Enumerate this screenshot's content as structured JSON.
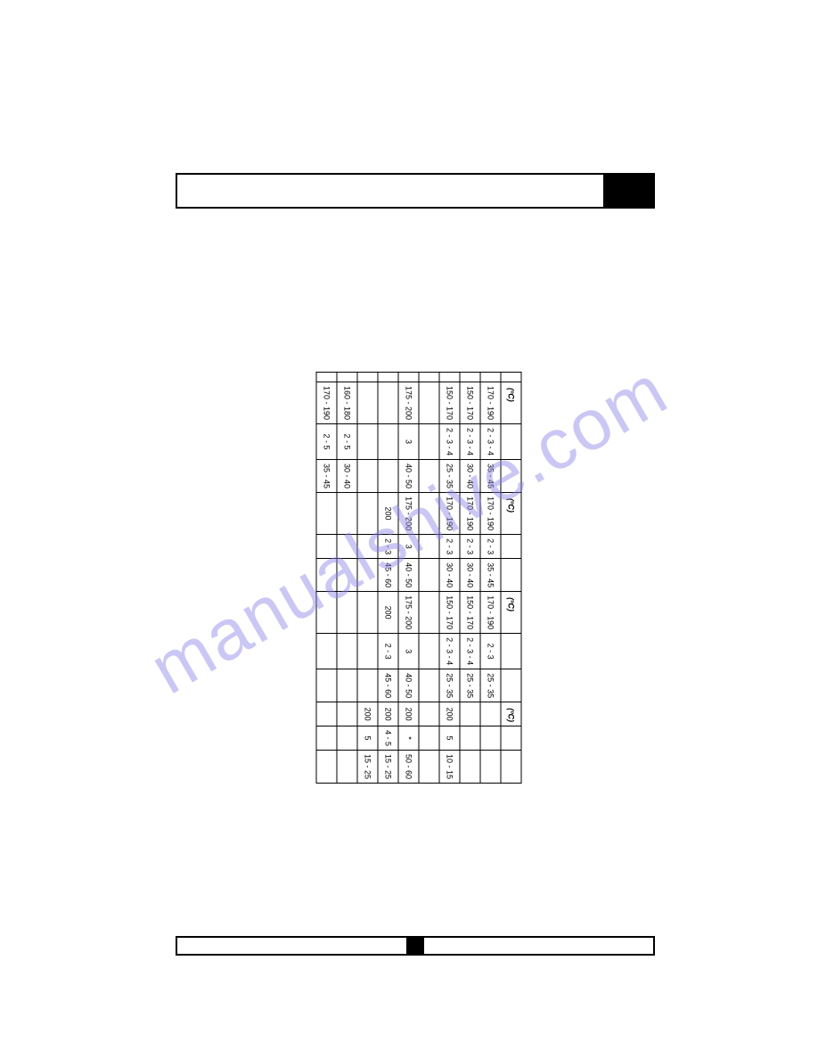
{
  "watermark_text": "manualshive.com",
  "table": {
    "group_headers": [
      {
        "unit": "(ºC)",
        "cols": [
          "",
          "",
          ""
        ]
      },
      {
        "unit": "(ºC)",
        "cols": [
          "",
          "",
          ""
        ]
      },
      {
        "unit": "(ºC)",
        "cols": [
          "",
          "",
          ""
        ]
      },
      {
        "unit": "(ºC)",
        "cols": [
          "",
          "",
          ""
        ]
      }
    ],
    "rows": [
      {
        "g1": [
          "170 - 190",
          "2 - 3 - 4",
          "35 - 45"
        ],
        "g2": [
          "170 - 190",
          "2 - 3",
          "35 - 45"
        ],
        "g3": [
          "170 - 190",
          "2 - 3",
          "25 - 35"
        ],
        "g4": [
          "",
          "",
          ""
        ]
      },
      {
        "g1": [
          "150 - 170",
          "2 - 3 - 4",
          "30 - 40"
        ],
        "g2": [
          "170 - 190",
          "2 - 3",
          "30 - 40"
        ],
        "g3": [
          "150 - 170",
          "2 - 3 - 4",
          "25 - 35"
        ],
        "g4": [
          "",
          "",
          ""
        ]
      },
      {
        "g1": [
          "150 - 170",
          "2 - 3 - 4",
          "25 - 35"
        ],
        "g2": [
          "170 - 190",
          "2 - 3",
          "30 - 40"
        ],
        "g3": [
          "150 - 170",
          "2 - 3 - 4",
          "25 - 35"
        ],
        "g4": [
          "200",
          "5",
          "10 - 15"
        ]
      },
      {
        "g1": [
          "",
          "",
          ""
        ],
        "g2": [
          "",
          "",
          ""
        ],
        "g3": [
          "",
          "",
          ""
        ],
        "g4": [
          "",
          "",
          ""
        ]
      },
      {
        "g1": [
          "175 - 200",
          "3",
          "40 - 50"
        ],
        "g2": [
          "175 - 200",
          "3",
          "40 - 50"
        ],
        "g3": [
          "175 - 200",
          "3",
          "40 - 50"
        ],
        "g4": [
          "200",
          "*",
          "50 - 60"
        ]
      },
      {
        "g1": [
          "",
          "",
          ""
        ],
        "g2": [
          "200",
          "2 - 3",
          "45 - 60"
        ],
        "g3": [
          "200",
          "2 - 3",
          "45 - 60"
        ],
        "g4": [
          "200",
          "4 - 5",
          "15 - 25"
        ]
      },
      {
        "g1": [
          "",
          "",
          ""
        ],
        "g2": [
          "",
          "",
          ""
        ],
        "g3": [
          "",
          "",
          ""
        ],
        "g4": [
          "200",
          "5",
          "15 - 25"
        ]
      },
      {
        "g1": [
          "160 - 180",
          "2 - 5",
          "30 - 40"
        ],
        "g2": [
          "",
          "",
          ""
        ],
        "g3": [
          "",
          "",
          ""
        ],
        "g4": [
          "",
          "",
          ""
        ]
      },
      {
        "g1": [
          "170 - 190",
          "2 - 5",
          "35 - 45"
        ],
        "g2": [
          "",
          "",
          ""
        ],
        "g3": [
          "",
          "",
          ""
        ],
        "g4": [
          "",
          "",
          ""
        ]
      }
    ]
  }
}
